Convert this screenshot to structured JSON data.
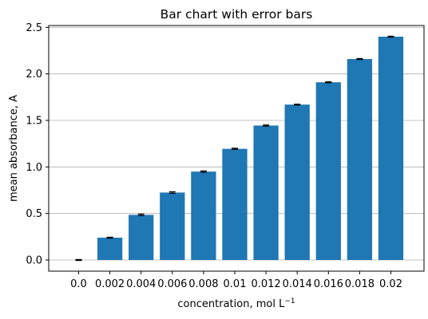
{
  "chart_data": {
    "type": "bar",
    "title": "Bar chart with error bars",
    "xlabel": "concentration, mol L",
    "xlabel_superscript": "−1",
    "ylabel": "mean absorbance, A",
    "categories": [
      "0.0",
      "0.002",
      "0.004",
      "0.006",
      "0.008",
      "0.01",
      "0.012",
      "0.014",
      "0.016",
      "0.018",
      "0.02"
    ],
    "values": [
      0.0,
      0.24,
      0.485,
      0.725,
      0.95,
      1.195,
      1.445,
      1.67,
      1.91,
      2.16,
      2.4
    ],
    "errors": [
      0.005,
      0.005,
      0.008,
      0.008,
      0.007,
      0.006,
      0.006,
      0.005,
      0.005,
      0.005,
      0.005
    ],
    "ylim": [
      -0.12,
      2.52
    ],
    "yticks": [
      0.0,
      0.5,
      1.0,
      1.5,
      2.0,
      2.5
    ],
    "ytick_labels": [
      "0.0",
      "0.5",
      "1.0",
      "1.5",
      "2.0",
      "2.5"
    ],
    "grid": "y",
    "colors": {
      "bar": "#1f77b4",
      "grid": "#b0b0b0",
      "error": "#000000"
    }
  }
}
